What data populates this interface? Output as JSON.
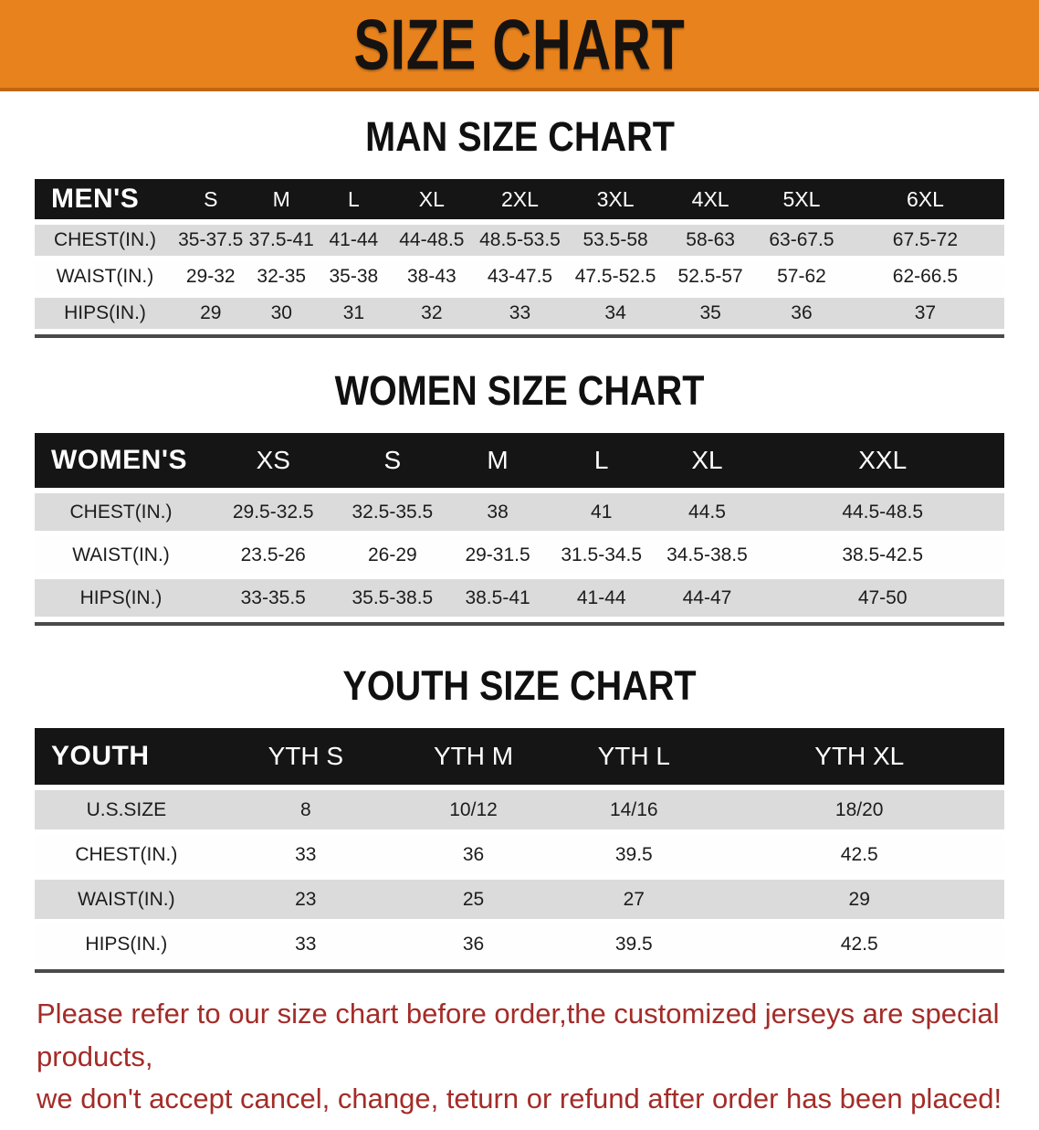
{
  "banner": {
    "title": "SIZE CHART"
  },
  "colors": {
    "banner_orange": "#E8821C",
    "banner_edge": "#C06512",
    "header_band_black": "#151515",
    "row_gray": "#DBDBDB",
    "disclaimer_red": "#A32C28"
  },
  "chart_data": [
    {
      "type": "table",
      "title": "MAN SIZE CHART",
      "corner_label": "MEN'S",
      "columns": [
        "S",
        "M",
        "L",
        "XL",
        "2XL",
        "3XL",
        "4XL",
        "5XL",
        "6XL"
      ],
      "rows": [
        {
          "label": "CHEST(IN.)",
          "values": [
            "35-37.5",
            "37.5-41",
            "41-44",
            "44-48.5",
            "48.5-53.5",
            "53.5-58",
            "58-63",
            "63-67.5",
            "67.5-72"
          ]
        },
        {
          "label": "WAIST(IN.)",
          "values": [
            "29-32",
            "32-35",
            "35-38",
            "38-43",
            "43-47.5",
            "47.5-52.5",
            "52.5-57",
            "57-62",
            "62-66.5"
          ]
        },
        {
          "label": "HIPS(IN.)",
          "values": [
            "29",
            "30",
            "31",
            "32",
            "33",
            "34",
            "35",
            "36",
            "37"
          ]
        }
      ]
    },
    {
      "type": "table",
      "title": "WOMEN SIZE CHART",
      "corner_label": "WOMEN'S",
      "columns": [
        "XS",
        "S",
        "M",
        "L",
        "XL",
        "XXL"
      ],
      "rows": [
        {
          "label": "CHEST(IN.)",
          "values": [
            "29.5-32.5",
            "32.5-35.5",
            "38",
            "41",
            "44.5",
            "44.5-48.5"
          ]
        },
        {
          "label": "WAIST(IN.)",
          "values": [
            "23.5-26",
            "26-29",
            "29-31.5",
            "31.5-34.5",
            "34.5-38.5",
            "38.5-42.5"
          ]
        },
        {
          "label": "HIPS(IN.)",
          "values": [
            "33-35.5",
            "35.5-38.5",
            "38.5-41",
            "41-44",
            "44-47",
            "47-50"
          ]
        }
      ]
    },
    {
      "type": "table",
      "title": "YOUTH SIZE CHART",
      "corner_label": "YOUTH",
      "columns": [
        "YTH S",
        "YTH M",
        "YTH L",
        "YTH XL"
      ],
      "rows": [
        {
          "label": "U.S.SIZE",
          "values": [
            "8",
            "10/12",
            "14/16",
            "18/20"
          ]
        },
        {
          "label": "CHEST(IN.)",
          "values": [
            "33",
            "36",
            "39.5",
            "42.5"
          ]
        },
        {
          "label": "WAIST(IN.)",
          "values": [
            "23",
            "25",
            "27",
            "29"
          ]
        },
        {
          "label": "HIPS(IN.)",
          "values": [
            "33",
            "36",
            "39.5",
            "42.5"
          ]
        }
      ]
    }
  ],
  "disclaimer": {
    "line1": "Please refer to our size chart before order,the customized jerseys are special products,",
    "line2": "we don't accept cancel, change, teturn or refund after order has been placed!"
  }
}
